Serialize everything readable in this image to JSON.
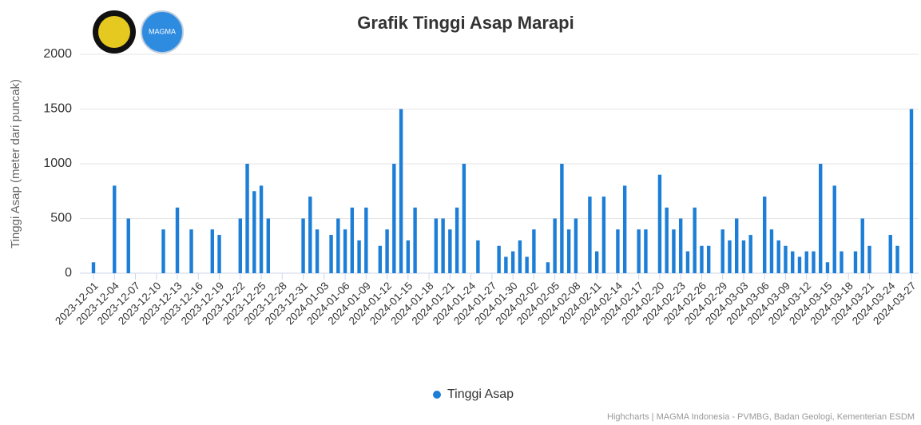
{
  "chart_data": {
    "type": "bar",
    "title": "Grafik Tinggi Asap Marapi",
    "logo_text": "MAGMA",
    "y_axis_label": "Tinggi Asap (meter dari puncak)",
    "credits": "Highcharts | MAGMA Indonesia - PVMBG, Badan Geologi, Kementerian ESDM",
    "categories": [
      "2023-12-01",
      null,
      null,
      "2023-12-04",
      null,
      null,
      "2023-12-07",
      null,
      null,
      "2023-12-10",
      null,
      null,
      "2023-12-13",
      null,
      null,
      "2023-12-16",
      null,
      null,
      "2023-12-19",
      null,
      null,
      "2023-12-22",
      null,
      null,
      "2023-12-25",
      null,
      null,
      "2023-12-28",
      null,
      null,
      "2023-12-31",
      null,
      null,
      "2024-01-03",
      null,
      null,
      "2024-01-06",
      null,
      null,
      "2024-01-09",
      null,
      null,
      "2024-01-12",
      null,
      null,
      "2024-01-15",
      null,
      null,
      "2024-01-18",
      null,
      null,
      "2024-01-21",
      null,
      null,
      "2024-01-24",
      null,
      null,
      "2024-01-27",
      null,
      null,
      "2024-01-30",
      null,
      null,
      "2024-02-02",
      null,
      null,
      "2024-02-05",
      null,
      null,
      "2024-02-08",
      null,
      null,
      "2024-02-11",
      null,
      null,
      "2024-02-14",
      null,
      null,
      "2024-02-17",
      null,
      null,
      "2024-02-20",
      null,
      null,
      "2024-02-23",
      null,
      null,
      "2024-02-26",
      null,
      null,
      "2024-02-29",
      null,
      null,
      "2024-03-03",
      null,
      null,
      "2024-03-06",
      null,
      null,
      "2024-03-09",
      null,
      null,
      "2024-03-12",
      null,
      null,
      "2024-03-15",
      null,
      null,
      "2024-03-18",
      null,
      null,
      "2024-03-21",
      null,
      null,
      "2024-03-24",
      null,
      null,
      "2024-03-27"
    ],
    "series": [
      {
        "name": "Tinggi Asap",
        "color": "#1c7ed6",
        "values": [
          100,
          null,
          null,
          800,
          null,
          500,
          null,
          null,
          null,
          null,
          400,
          null,
          600,
          null,
          400,
          null,
          null,
          400,
          350,
          null,
          null,
          500,
          1000,
          750,
          800,
          500,
          null,
          null,
          null,
          null,
          500,
          700,
          400,
          null,
          350,
          500,
          400,
          600,
          300,
          600,
          null,
          250,
          400,
          1000,
          1500,
          300,
          600,
          null,
          null,
          500,
          500,
          400,
          600,
          1000,
          null,
          300,
          null,
          null,
          250,
          150,
          200,
          300,
          150,
          400,
          null,
          100,
          500,
          1000,
          400,
          500,
          null,
          700,
          200,
          700,
          null,
          400,
          800,
          null,
          400,
          400,
          null,
          900,
          600,
          400,
          500,
          200,
          600,
          250,
          250,
          null,
          400,
          300,
          500,
          300,
          350,
          null,
          700,
          400,
          300,
          250,
          200,
          150,
          200,
          200,
          1000,
          100,
          800,
          200,
          null,
          200,
          500,
          250,
          null,
          null,
          350,
          250,
          null,
          1500
        ]
      }
    ],
    "ylim": [
      0,
      2000
    ],
    "yticks": [
      0,
      500,
      1000,
      1500,
      2000
    ],
    "grid": true,
    "legend": "bottom"
  }
}
